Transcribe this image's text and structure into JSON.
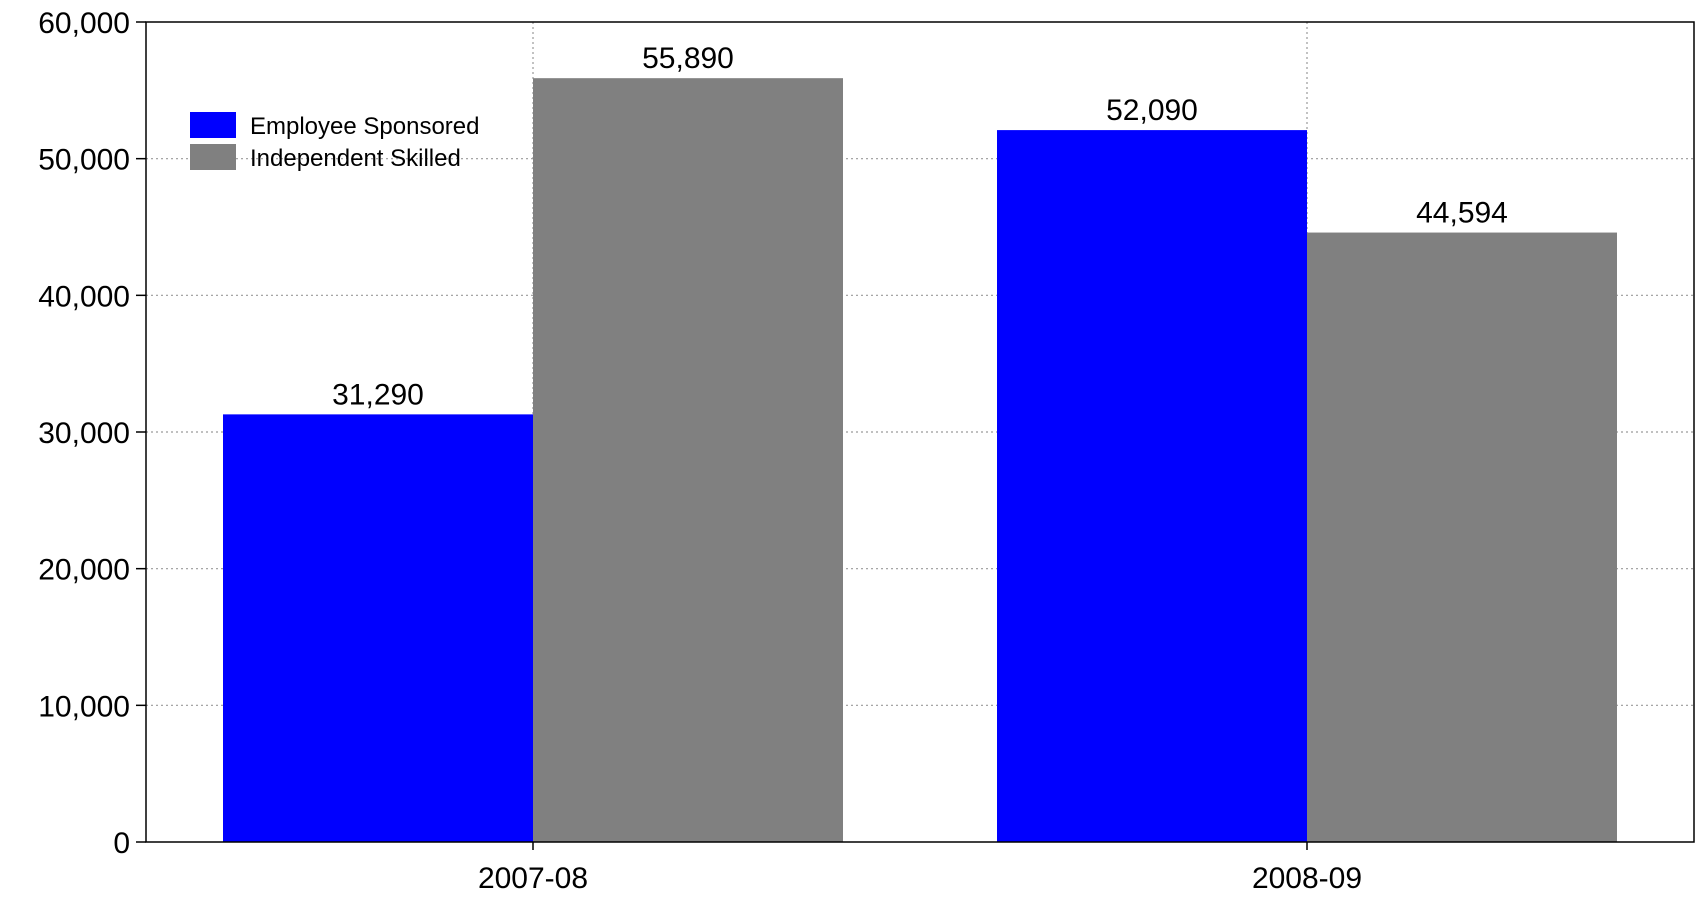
{
  "chart_data": {
    "type": "bar",
    "title": "",
    "xlabel": "",
    "ylabel": "",
    "categories": [
      "2007-08",
      "2008-09"
    ],
    "series": [
      {
        "name": "Employee Sponsored",
        "values": [
          31290,
          52090
        ],
        "value_labels": [
          "31,290",
          "52,090"
        ],
        "color": "#0000ff"
      },
      {
        "name": "Independent Skilled",
        "values": [
          55890,
          44594
        ],
        "value_labels": [
          "55,890",
          "44,594"
        ],
        "color": "#808080"
      }
    ],
    "ylim": [
      0,
      60000
    ],
    "y_ticks": [
      0,
      10000,
      20000,
      30000,
      40000,
      50000,
      60000
    ],
    "y_tick_labels": [
      "0",
      "10,000",
      "20,000",
      "30,000",
      "40,000",
      "50,000",
      "60,000"
    ],
    "grid": true,
    "grid_style": "dotted",
    "legend": "top-left"
  }
}
